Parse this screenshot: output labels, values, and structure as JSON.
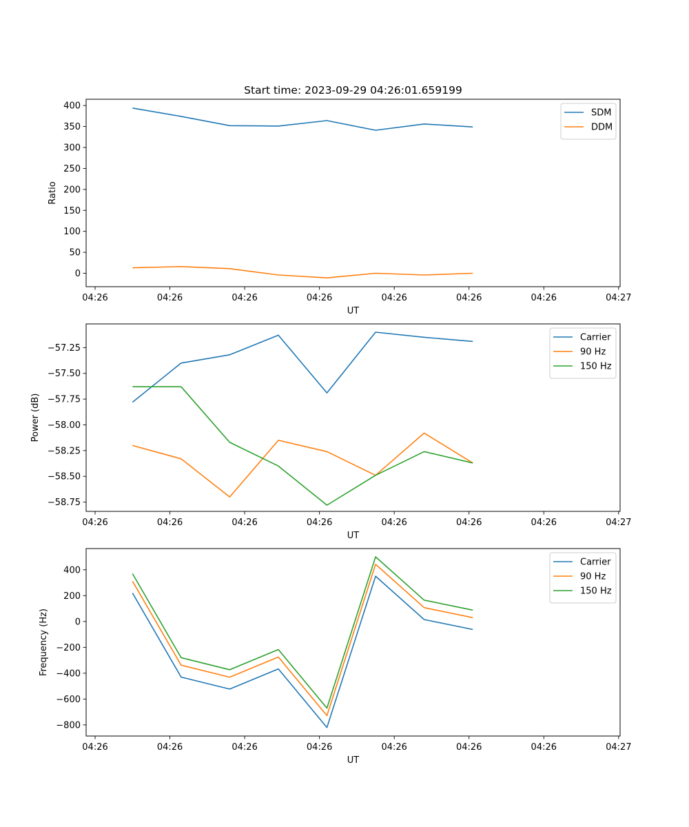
{
  "figure_title": "Start time: 2023-09-29 04:26:01.659199",
  "chart_data": [
    {
      "type": "line",
      "title": "Start time: 2023-09-29 04:26:01.659199",
      "xlabel": "UT",
      "ylabel": "Ratio",
      "x_tick_labels": [
        "04:26",
        "04:26",
        "04:26",
        "04:26",
        "04:26",
        "04:26",
        "04:26",
        "04:27"
      ],
      "x_tick_values": [
        0,
        1,
        2,
        3,
        4,
        5,
        6,
        7
      ],
      "x": [
        0.5,
        1.15,
        1.8,
        2.45,
        3.1,
        3.75,
        4.4,
        5.05
      ],
      "xlim": [
        -0.12,
        7.02
      ],
      "ylim": [
        -32,
        415
      ],
      "y_ticks": [
        0,
        50,
        100,
        150,
        200,
        250,
        300,
        350,
        400
      ],
      "legend_position": "top-right",
      "series": [
        {
          "name": "SDM",
          "color": "#1f77b4",
          "values": [
            394,
            374,
            352,
            351,
            364,
            341,
            356,
            349
          ]
        },
        {
          "name": "DDM",
          "color": "#ff7f0e",
          "values": [
            13,
            16,
            11,
            -4,
            -11,
            0,
            -4,
            0
          ]
        }
      ]
    },
    {
      "type": "line",
      "title": "",
      "xlabel": "UT",
      "ylabel": "Power (dB)",
      "x_tick_labels": [
        "04:26",
        "04:26",
        "04:26",
        "04:26",
        "04:26",
        "04:26",
        "04:26",
        "04:27"
      ],
      "x_tick_values": [
        0,
        1,
        2,
        3,
        4,
        5,
        6,
        7
      ],
      "x": [
        0.5,
        1.15,
        1.8,
        2.45,
        3.1,
        3.75,
        4.4,
        5.05
      ],
      "xlim": [
        -0.12,
        7.02
      ],
      "ylim": [
        -58.84,
        -57.02
      ],
      "y_ticks": [
        -57.25,
        -57.5,
        -57.75,
        -58.0,
        -58.25,
        -58.5,
        -58.75
      ],
      "y_tick_labels": [
        "−57.25",
        "−57.50",
        "−57.75",
        "−58.00",
        "−58.25",
        "−58.50",
        "−58.75"
      ],
      "legend_position": "top-right",
      "series": [
        {
          "name": "Carrier",
          "color": "#1f77b4",
          "values": [
            -57.78,
            -57.4,
            -57.32,
            -57.13,
            -57.69,
            -57.1,
            -57.15,
            -57.19
          ]
        },
        {
          "name": "90 Hz",
          "color": "#ff7f0e",
          "values": [
            -58.2,
            -58.33,
            -58.7,
            -58.15,
            -58.26,
            -58.49,
            -58.08,
            -58.37
          ]
        },
        {
          "name": "150 Hz",
          "color": "#2ca02c",
          "values": [
            -57.63,
            -57.63,
            -58.17,
            -58.4,
            -58.78,
            -58.49,
            -58.26,
            -58.37
          ]
        }
      ]
    },
    {
      "type": "line",
      "title": "",
      "xlabel": "UT",
      "ylabel": "Frequency (Hz)",
      "x_tick_labels": [
        "04:26",
        "04:26",
        "04:26",
        "04:26",
        "04:26",
        "04:26",
        "04:26",
        "04:27"
      ],
      "x_tick_values": [
        0,
        1,
        2,
        3,
        4,
        5,
        6,
        7
      ],
      "x": [
        0.5,
        1.15,
        1.8,
        2.45,
        3.1,
        3.75,
        4.4,
        5.05
      ],
      "xlim": [
        -0.12,
        7.02
      ],
      "ylim": [
        -886,
        564
      ],
      "y_ticks": [
        400,
        200,
        0,
        -200,
        -400,
        -600,
        -800
      ],
      "y_tick_labels": [
        "400",
        "200",
        "0",
        "−200",
        "−400",
        "−600",
        "−800"
      ],
      "legend_position": "top-right",
      "series": [
        {
          "name": "Carrier",
          "color": "#1f77b4",
          "values": [
            220,
            -430,
            -523,
            -367,
            -820,
            350,
            15,
            -62
          ]
        },
        {
          "name": "90 Hz",
          "color": "#ff7f0e",
          "values": [
            312,
            -338,
            -431,
            -275,
            -728,
            442,
            107,
            30
          ]
        },
        {
          "name": "150 Hz",
          "color": "#2ca02c",
          "values": [
            370,
            -280,
            -373,
            -217,
            -670,
            500,
            165,
            88
          ]
        }
      ]
    }
  ]
}
